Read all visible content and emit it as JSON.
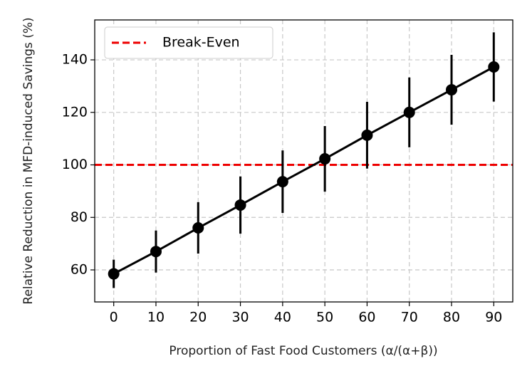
{
  "chart_data": {
    "type": "line",
    "x_label": "Proportion of Fast Food Customers (α/(α+β))",
    "y_label": "Relative Reduction in MFD-induced Savings (%)",
    "x": [
      0,
      10,
      20,
      30,
      40,
      50,
      60,
      70,
      80,
      90
    ],
    "series": [
      {
        "color": "#000000",
        "values": [
          58.5,
          67.0,
          76.0,
          84.7,
          93.6,
          102.3,
          111.3,
          120.0,
          128.6,
          137.3
        ],
        "errors": [
          5.4,
          8.0,
          9.8,
          10.9,
          11.9,
          12.5,
          12.7,
          13.3,
          13.3,
          13.2
        ]
      }
    ],
    "reference_lines": [
      {
        "name": "Break-Even",
        "value": 100,
        "color": "#ee0000"
      }
    ],
    "xlim": [
      -4.5,
      94.5
    ],
    "ylim": [
      47.8,
      155.2
    ],
    "xticks": [
      0,
      10,
      20,
      30,
      40,
      50,
      60,
      70,
      80,
      90
    ],
    "yticks": [
      60,
      80,
      100,
      120,
      140
    ],
    "grid": true,
    "legend": "upper left"
  }
}
